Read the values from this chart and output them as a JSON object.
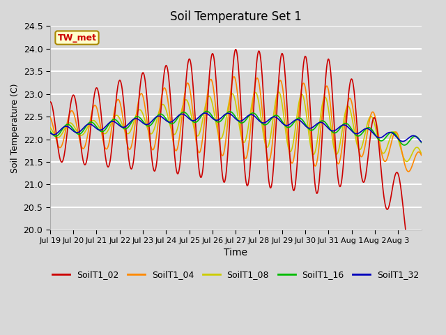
{
  "title": "Soil Temperature Set 1",
  "xlabel": "Time",
  "ylabel": "Soil Temperature (C)",
  "ylim": [
    20.0,
    24.5
  ],
  "figsize": [
    6.4,
    4.8
  ],
  "dpi": 100,
  "bg_color": "#d8d8d8",
  "plot_bg_color": "#d8d8d8",
  "colors": {
    "SoilT1_02": "#cc0000",
    "SoilT1_04": "#ff8800",
    "SoilT1_08": "#cccc00",
    "SoilT1_16": "#00bb00",
    "SoilT1_32": "#0000bb"
  },
  "annotation_text": "TW_met",
  "annotation_bg": "#ffffcc",
  "annotation_border": "#aa8800",
  "tick_labels": [
    "Jul 19",
    "Jul 20",
    "Jul 21",
    "Jul 22",
    "Jul 23",
    "Jul 24",
    "Jul 25",
    "Jul 26",
    "Jul 27",
    "Jul 28",
    "Jul 29",
    "Jul 30",
    "Jul 31",
    "Aug 1",
    "Aug 2",
    "Aug 3"
  ]
}
